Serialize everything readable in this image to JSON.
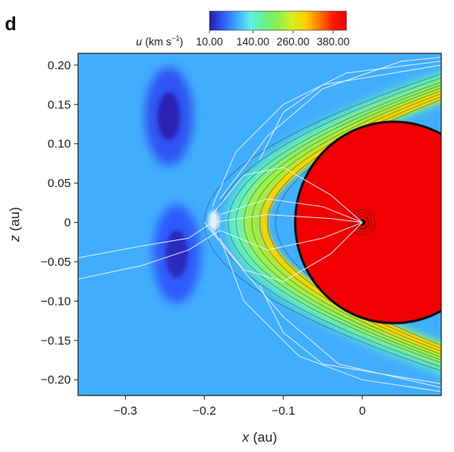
{
  "panel_label": "d",
  "colorbar": {
    "label_var": "u",
    "label_units_pre": "(km s",
    "label_units_exp": "−1",
    "label_units_post": ")",
    "ticks": [
      {
        "value": 10,
        "label": "10.00"
      },
      {
        "value": 140,
        "label": "140.00"
      },
      {
        "value": 260,
        "label": "260.00"
      },
      {
        "value": 380,
        "label": "380.00"
      }
    ],
    "range": [
      10,
      420
    ],
    "stops": [
      "#2a1aa8",
      "#2d5cff",
      "#3fa9ff",
      "#5ef0e8",
      "#66f08a",
      "#8af04a",
      "#d4f020",
      "#ffd000",
      "#ff7a00",
      "#ff1a00",
      "#f00000"
    ]
  },
  "chart_data": {
    "type": "heatmap",
    "xlabel_var": "x",
    "xlabel_unit": "(au)",
    "ylabel_var": "z",
    "ylabel_unit": "(au)",
    "xlim": [
      -0.36,
      0.1
    ],
    "ylim": [
      -0.22,
      0.215
    ],
    "x_ticks": [
      {
        "value": -0.3,
        "label": "−0.3"
      },
      {
        "value": -0.2,
        "label": "−0.2"
      },
      {
        "value": -0.1,
        "label": "−0.1"
      },
      {
        "value": 0,
        "label": "0"
      }
    ],
    "y_ticks": [
      {
        "value": 0.2,
        "label": "0.20"
      },
      {
        "value": 0.15,
        "label": "0.15"
      },
      {
        "value": 0.1,
        "label": "0.10"
      },
      {
        "value": 0.05,
        "label": "0.05"
      },
      {
        "value": 0,
        "label": "0"
      },
      {
        "value": -0.05,
        "label": "−0.05"
      },
      {
        "value": -0.1,
        "label": "−0.10"
      },
      {
        "value": -0.15,
        "label": "−0.15"
      },
      {
        "value": -0.2,
        "label": "−0.20"
      }
    ],
    "field": {
      "background_speed": 95,
      "star_position": [
        0,
        0
      ],
      "wind_region": {
        "center": [
          0.04,
          0.0
        ],
        "radius_x": 0.125,
        "radius_y": 0.128,
        "speed": 420
      },
      "bow_shock": {
        "nose_x": -0.17,
        "speed_outer": 230
      },
      "companion_position": [
        -0.188,
        0.002
      ],
      "low_speed_lobes": [
        {
          "x": -0.245,
          "z": 0.135,
          "speed": 15
        },
        {
          "x": -0.235,
          "z": -0.04,
          "speed": 20
        }
      ]
    },
    "streamlines": [
      [
        [
          -0.36,
          -0.045
        ],
        [
          -0.28,
          -0.03
        ],
        [
          -0.22,
          -0.02
        ],
        [
          -0.19,
          0.0
        ],
        [
          -0.12,
          0.01
        ],
        [
          -0.04,
          0.005
        ],
        [
          0,
          0
        ]
      ],
      [
        [
          -0.36,
          -0.072
        ],
        [
          -0.28,
          -0.055
        ],
        [
          -0.22,
          -0.035
        ],
        [
          -0.18,
          -0.01
        ]
      ],
      [
        [
          -0.19,
          0.02
        ],
        [
          -0.16,
          0.09
        ],
        [
          -0.1,
          0.15
        ],
        [
          -0.02,
          0.19
        ],
        [
          0.1,
          0.205
        ]
      ],
      [
        [
          -0.18,
          0.03
        ],
        [
          -0.12,
          0.11
        ],
        [
          -0.05,
          0.17
        ],
        [
          0.05,
          0.205
        ],
        [
          0.1,
          0.21
        ]
      ],
      [
        [
          -0.18,
          -0.02
        ],
        [
          -0.15,
          -0.1
        ],
        [
          -0.08,
          -0.17
        ],
        [
          0.0,
          -0.2
        ],
        [
          0.1,
          -0.215
        ]
      ],
      [
        [
          -0.2,
          0.0
        ],
        [
          -0.16,
          -0.05
        ],
        [
          -0.1,
          -0.12
        ],
        [
          -0.03,
          -0.18
        ],
        [
          0.1,
          -0.21
        ]
      ],
      [
        [
          0,
          0
        ],
        [
          -0.04,
          0.035
        ],
        [
          -0.1,
          0.07
        ],
        [
          -0.15,
          0.06
        ],
        [
          -0.19,
          0.01
        ]
      ],
      [
        [
          0,
          0
        ],
        [
          -0.05,
          0.02
        ],
        [
          -0.12,
          0.03
        ],
        [
          -0.18,
          0.01
        ]
      ],
      [
        [
          0,
          0
        ],
        [
          -0.05,
          -0.02
        ],
        [
          -0.12,
          -0.035
        ],
        [
          -0.18,
          -0.01
        ]
      ],
      [
        [
          0,
          0
        ],
        [
          -0.04,
          -0.04
        ],
        [
          -0.1,
          -0.075
        ],
        [
          -0.15,
          -0.06
        ],
        [
          -0.19,
          -0.01
        ]
      ],
      [
        [
          -0.13,
          0.08
        ],
        [
          -0.1,
          0.14
        ],
        [
          -0.05,
          0.175
        ],
        [
          0.1,
          0.2
        ]
      ],
      [
        [
          -0.13,
          -0.08
        ],
        [
          -0.1,
          -0.14
        ],
        [
          -0.05,
          -0.18
        ],
        [
          0.1,
          -0.205
        ]
      ]
    ]
  }
}
